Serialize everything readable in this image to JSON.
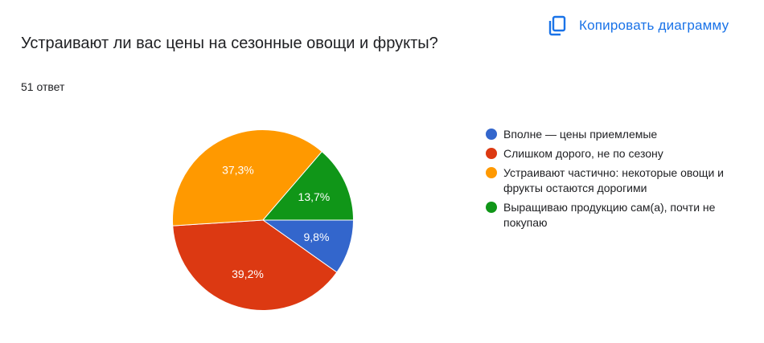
{
  "copy_button": {
    "label": "Копировать диаграмму",
    "icon": "copy-icon",
    "color": "#1a73e8"
  },
  "question": {
    "title": "Устраивают ли вас цены на сезонные овощи и фрукты?",
    "responses": "51 ответ"
  },
  "chart_data": {
    "type": "pie",
    "title": "Устраивают ли вас цены на сезонные овощи и фрукты?",
    "start_angle_deg": 90,
    "direction": "clockwise",
    "legend_position": "right",
    "slices": [
      {
        "label": "Вполне — цены приемлемые",
        "value": 9.8,
        "display": "9,8%",
        "color": "#3366cc"
      },
      {
        "label": "Слишком дорого, не по сезону",
        "value": 39.2,
        "display": "39,2%",
        "color": "#dc3912"
      },
      {
        "label": "Устраивают частично: некоторые овощи и фрукты остаются дорогими",
        "value": 37.3,
        "display": "37,3%",
        "color": "#ff9900"
      },
      {
        "label": "Выращиваю продукцию сам(а), почти не покупаю",
        "value": 13.7,
        "display": "13,7%",
        "color": "#109618"
      }
    ]
  }
}
